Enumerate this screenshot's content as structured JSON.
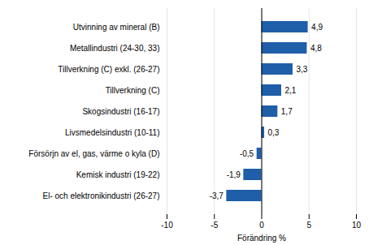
{
  "chart_data": {
    "type": "bar",
    "orientation": "horizontal",
    "categories": [
      "El- och elektronikindustri (26-27)",
      "Kemisk industri (19-22)",
      "Försörjn av el, gas, värme o kyla (D)",
      "Livsmedelsindustri (10-11)",
      "Skogsindustri (16-17)",
      "Tillverkning (C)",
      "Tillverkning (C) exkl. (26-27)",
      "Metallindustri (24-30, 33)",
      "Utvinning av mineral (B)"
    ],
    "values": [
      -3.7,
      -1.9,
      -0.5,
      0.3,
      1.7,
      2.1,
      3.3,
      4.8,
      4.9
    ],
    "value_labels": [
      "-3,7",
      "-1,9",
      "-0,5",
      "0,3",
      "1,7",
      "2,1",
      "3,3",
      "4,8",
      "4,9"
    ],
    "color": "#1f5ea8",
    "xlabel": "Förändring %",
    "xlim": [
      -10,
      10
    ],
    "xticks": [
      -10,
      -5,
      0,
      5,
      10
    ],
    "grid": true,
    "data_labels": true
  }
}
